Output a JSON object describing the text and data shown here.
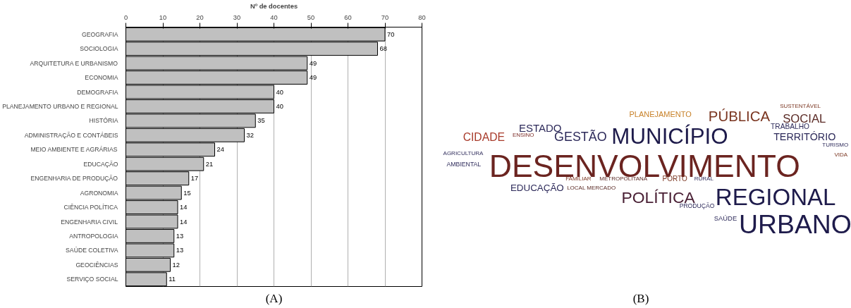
{
  "chart_data": [
    {
      "type": "bar",
      "orientation": "horizontal",
      "xlabel": "Nº de docentes",
      "categories": [
        "GEOGRAFIA",
        "SOCIOLOGIA",
        "ARQUITETURA E URBANISMO",
        "ECONOMIA",
        "DEMOGRAFIA",
        "PLANEJAMENTO URBANO E REGIONAL",
        "HISTÓRIA",
        "ADMINISTRAÇÃO E CONTÁBEIS",
        "MEIO AMBIENTE E AGRÁRIAS",
        "EDUCAÇÃO",
        "ENGENHARIA DE PRODUÇÃO",
        "AGRONOMIA",
        "CIÊNCIA POLÍTICA",
        "ENGENHARIA CIVIL",
        "ANTROPOLOGIA",
        "SAÚDE COLETIVA",
        "GEOCIÊNCIAS",
        "SERVIÇO SOCIAL"
      ],
      "values": [
        70,
        68,
        49,
        49,
        40,
        40,
        35,
        32,
        24,
        21,
        17,
        15,
        14,
        14,
        13,
        13,
        12,
        11
      ],
      "color": "#c0c0c0",
      "xlim": [
        0,
        80
      ],
      "xticks": [
        0,
        10,
        20,
        30,
        40,
        50,
        60,
        70,
        80
      ],
      "grid": "x",
      "data_labels": true,
      "annotations": [
        "(A)"
      ]
    },
    {
      "type": "other",
      "annotations": [
        "ESTADO",
        "CIDADE",
        "ENSINO",
        "GESTÃO",
        "MUNICÍPIO",
        "PLANEJAMENTO",
        "PÚBLICA",
        "SUSTENTÁVEL",
        "SOCIAL",
        "TRABALHO",
        "TERRITÓRIO",
        "TURISMO",
        "VIDA",
        "AGRICULTURA",
        "AMBIENTAL",
        "DESENVOLVIMENTO",
        "EDUCAÇÃO",
        "FAMILIAR",
        "METROPOLITANA",
        "LOCAL MERCADO",
        "POLÍTICA",
        "PORTO",
        "RURAL",
        "REGIONAL",
        "PRODUÇÃO",
        "SAÚDE",
        "URBANO",
        "(B)"
      ]
    }
  ]
}
